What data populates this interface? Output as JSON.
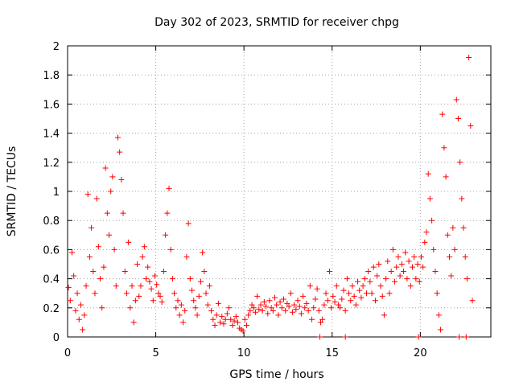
{
  "chart_data": {
    "type": "scatter",
    "title": "Day 302 of 2023, SRMTID for receiver chpg",
    "xlabel": "GPS time / hours",
    "ylabel": "SRMTID / TECUs",
    "xlim": [
      0,
      24
    ],
    "ylim": [
      0,
      2
    ],
    "xticks": [
      0,
      5,
      10,
      15,
      20
    ],
    "xtick_labels": [
      "0",
      "5",
      "10",
      "15",
      "20"
    ],
    "yticks": [
      0,
      0.2,
      0.4,
      0.6,
      0.8,
      1,
      1.2,
      1.4,
      1.6,
      1.8,
      2
    ],
    "ytick_labels": [
      "0",
      "0.2",
      "0.4",
      "0.6",
      "0.8",
      "1",
      "1.2",
      "1.4",
      "1.6",
      "1.8",
      "2"
    ],
    "grid": true,
    "marker": "+",
    "color": "#ff0000",
    "series": [
      {
        "name": "SRMTID",
        "points": [
          [
            0.05,
            0.34
          ],
          [
            0.15,
            0.25
          ],
          [
            0.25,
            0.58
          ],
          [
            0.35,
            0.42
          ],
          [
            0.45,
            0.18
          ],
          [
            0.55,
            0.3
          ],
          [
            0.65,
            0.12
          ],
          [
            0.75,
            0.22
          ],
          [
            0.85,
            0.05
          ],
          [
            0.95,
            0.15
          ],
          [
            1.05,
            0.35
          ],
          [
            1.15,
            0.98
          ],
          [
            1.25,
            0.55
          ],
          [
            1.35,
            0.75
          ],
          [
            1.45,
            0.45
          ],
          [
            1.55,
            0.3
          ],
          [
            1.65,
            0.95
          ],
          [
            1.75,
            0.62
          ],
          [
            1.85,
            0.4
          ],
          [
            1.95,
            0.2
          ],
          [
            2.05,
            0.48
          ],
          [
            2.15,
            1.16
          ],
          [
            2.25,
            0.85
          ],
          [
            2.35,
            0.7
          ],
          [
            2.45,
            1.0
          ],
          [
            2.55,
            1.1
          ],
          [
            2.65,
            0.6
          ],
          [
            2.75,
            0.35
          ],
          [
            2.85,
            1.37
          ],
          [
            2.95,
            1.27
          ],
          [
            3.05,
            1.08
          ],
          [
            3.15,
            0.85
          ],
          [
            3.25,
            0.45
          ],
          [
            3.35,
            0.3
          ],
          [
            3.45,
            0.65
          ],
          [
            3.55,
            0.2
          ],
          [
            3.65,
            0.35
          ],
          [
            3.75,
            0.1
          ],
          [
            3.85,
            0.25
          ],
          [
            3.95,
            0.5
          ],
          [
            4.05,
            0.28
          ],
          [
            4.15,
            0.35
          ],
          [
            4.25,
            0.55
          ],
          [
            4.35,
            0.62
          ],
          [
            4.45,
            0.4
          ],
          [
            4.55,
            0.48
          ],
          [
            4.65,
            0.38
          ],
          [
            4.75,
            0.33
          ],
          [
            4.85,
            0.25
          ],
          [
            4.95,
            0.42
          ],
          [
            5.05,
            0.36
          ],
          [
            5.15,
            0.3
          ],
          [
            5.25,
            0.28
          ],
          [
            5.35,
            0.24
          ],
          [
            5.45,
            0.45
          ],
          [
            5.55,
            0.7
          ],
          [
            5.65,
            0.85
          ],
          [
            5.75,
            1.02
          ],
          [
            5.85,
            0.6
          ],
          [
            5.95,
            0.4
          ],
          [
            6.05,
            0.3
          ],
          [
            6.15,
            0.2
          ],
          [
            6.25,
            0.25
          ],
          [
            6.35,
            0.15
          ],
          [
            6.45,
            0.22
          ],
          [
            6.55,
            0.1
          ],
          [
            6.65,
            0.18
          ],
          [
            6.75,
            0.55
          ],
          [
            6.85,
            0.78
          ],
          [
            6.95,
            0.4
          ],
          [
            7.05,
            0.32
          ],
          [
            7.15,
            0.25
          ],
          [
            7.25,
            0.2
          ],
          [
            7.35,
            0.15
          ],
          [
            7.45,
            0.28
          ],
          [
            7.55,
            0.38
          ],
          [
            7.65,
            0.58
          ],
          [
            7.75,
            0.45
          ],
          [
            7.85,
            0.3
          ],
          [
            7.95,
            0.22
          ],
          [
            8.05,
            0.35
          ],
          [
            8.15,
            0.18
          ],
          [
            8.25,
            0.12
          ],
          [
            8.35,
            0.08
          ],
          [
            8.45,
            0.15
          ],
          [
            8.55,
            0.23
          ],
          [
            8.65,
            0.1
          ],
          [
            8.75,
            0.14
          ],
          [
            8.85,
            0.09
          ],
          [
            8.95,
            0.12
          ],
          [
            9.05,
            0.16
          ],
          [
            9.15,
            0.2
          ],
          [
            9.25,
            0.12
          ],
          [
            9.35,
            0.08
          ],
          [
            9.45,
            0.11
          ],
          [
            9.55,
            0.14
          ],
          [
            9.65,
            0.1
          ],
          [
            9.75,
            0.06
          ],
          [
            9.85,
            0.05
          ],
          [
            9.95,
            0.04
          ],
          [
            10.05,
            0.12
          ],
          [
            10.15,
            0.08
          ],
          [
            10.25,
            0.15
          ],
          [
            10.35,
            0.18
          ],
          [
            10.45,
            0.22
          ],
          [
            10.55,
            0.2
          ],
          [
            10.65,
            0.17
          ],
          [
            10.75,
            0.28
          ],
          [
            10.85,
            0.19
          ],
          [
            10.95,
            0.22
          ],
          [
            11.05,
            0.18
          ],
          [
            11.15,
            0.24
          ],
          [
            11.25,
            0.21
          ],
          [
            11.35,
            0.16
          ],
          [
            11.45,
            0.25
          ],
          [
            11.55,
            0.2
          ],
          [
            11.65,
            0.18
          ],
          [
            11.75,
            0.27
          ],
          [
            11.85,
            0.22
          ],
          [
            11.95,
            0.15
          ],
          [
            12.05,
            0.24
          ],
          [
            12.15,
            0.2
          ],
          [
            12.25,
            0.26
          ],
          [
            12.35,
            0.18
          ],
          [
            12.45,
            0.23
          ],
          [
            12.55,
            0.21
          ],
          [
            12.65,
            0.3
          ],
          [
            12.75,
            0.17
          ],
          [
            12.85,
            0.22
          ],
          [
            12.95,
            0.19
          ],
          [
            13.05,
            0.25
          ],
          [
            13.15,
            0.21
          ],
          [
            13.25,
            0.16
          ],
          [
            13.35,
            0.28
          ],
          [
            13.45,
            0.2
          ],
          [
            13.55,
            0.23
          ],
          [
            13.65,
            0.18
          ],
          [
            13.75,
            0.35
          ],
          [
            13.85,
            0.12
          ],
          [
            13.95,
            0.2
          ],
          [
            14.05,
            0.26
          ],
          [
            14.15,
            0.33
          ],
          [
            14.25,
            0.18
          ],
          [
            14.35,
            0.1
          ],
          [
            14.45,
            0.12
          ],
          [
            14.55,
            0.22
          ],
          [
            14.65,
            0.3
          ],
          [
            14.75,
            0.25
          ],
          [
            14.85,
            0.45
          ],
          [
            14.95,
            0.2
          ],
          [
            15.05,
            0.28
          ],
          [
            15.15,
            0.24
          ],
          [
            15.25,
            0.35
          ],
          [
            15.35,
            0.22
          ],
          [
            15.45,
            0.2
          ],
          [
            15.55,
            0.26
          ],
          [
            15.65,
            0.32
          ],
          [
            15.75,
            0.18
          ],
          [
            15.85,
            0.4
          ],
          [
            15.95,
            0.3
          ],
          [
            16.05,
            0.25
          ],
          [
            16.15,
            0.35
          ],
          [
            16.25,
            0.28
          ],
          [
            16.35,
            0.22
          ],
          [
            16.45,
            0.38
          ],
          [
            16.55,
            0.32
          ],
          [
            16.65,
            0.27
          ],
          [
            16.75,
            0.35
          ],
          [
            16.85,
            0.4
          ],
          [
            16.95,
            0.3
          ],
          [
            17.05,
            0.45
          ],
          [
            17.15,
            0.38
          ],
          [
            17.25,
            0.3
          ],
          [
            17.35,
            0.48
          ],
          [
            17.45,
            0.25
          ],
          [
            17.55,
            0.42
          ],
          [
            17.65,
            0.5
          ],
          [
            17.75,
            0.35
          ],
          [
            17.85,
            0.28
          ],
          [
            17.95,
            0.15
          ],
          [
            18.05,
            0.4
          ],
          [
            18.15,
            0.52
          ],
          [
            18.25,
            0.3
          ],
          [
            18.35,
            0.45
          ],
          [
            18.45,
            0.6
          ],
          [
            18.55,
            0.38
          ],
          [
            18.65,
            0.48
          ],
          [
            18.75,
            0.55
          ],
          [
            18.85,
            0.42
          ],
          [
            18.95,
            0.5
          ],
          [
            19.05,
            0.45
          ],
          [
            19.15,
            0.58
          ],
          [
            19.25,
            0.4
          ],
          [
            19.35,
            0.52
          ],
          [
            19.45,
            0.35
          ],
          [
            19.55,
            0.48
          ],
          [
            19.65,
            0.55
          ],
          [
            19.75,
            0.4
          ],
          [
            19.85,
            0.5
          ],
          [
            19.95,
            0.38
          ],
          [
            20.05,
            0.55
          ],
          [
            20.15,
            0.48
          ],
          [
            20.25,
            0.65
          ],
          [
            20.35,
            0.72
          ],
          [
            20.45,
            1.12
          ],
          [
            20.55,
            0.95
          ],
          [
            20.65,
            0.8
          ],
          [
            20.75,
            0.6
          ],
          [
            20.85,
            0.45
          ],
          [
            20.95,
            0.3
          ],
          [
            21.05,
            0.15
          ],
          [
            21.15,
            0.05
          ],
          [
            21.25,
            1.53
          ],
          [
            21.35,
            1.3
          ],
          [
            21.45,
            1.1
          ],
          [
            21.55,
            0.7
          ],
          [
            21.65,
            0.55
          ],
          [
            21.75,
            0.42
          ],
          [
            21.85,
            0.75
          ],
          [
            21.95,
            0.6
          ],
          [
            22.05,
            1.63
          ],
          [
            22.15,
            1.5
          ],
          [
            22.25,
            1.2
          ],
          [
            22.35,
            0.95
          ],
          [
            22.45,
            0.75
          ],
          [
            22.55,
            0.55
          ],
          [
            22.65,
            0.4
          ],
          [
            22.75,
            1.92
          ],
          [
            22.85,
            1.45
          ],
          [
            22.95,
            0.25
          ],
          [
            14.3,
            0
          ],
          [
            15.75,
            0
          ],
          [
            19.9,
            0
          ],
          [
            22.2,
            0
          ],
          [
            22.6,
            0
          ]
        ]
      }
    ]
  }
}
